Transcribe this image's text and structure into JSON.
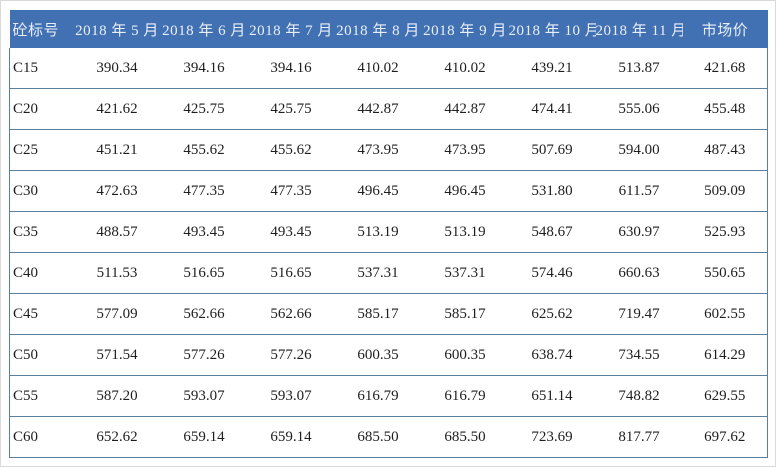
{
  "table": {
    "columns": [
      "砼标号",
      "2018 年 5 月",
      "2018 年 6 月",
      "2018 年 7 月",
      "2018 年 8 月",
      "2018 年 9 月",
      "2018 年 10 月",
      "2018 年 11 月",
      "市场价"
    ],
    "rows": [
      {
        "label": "C15",
        "values": [
          "390.34",
          "394.16",
          "394.16",
          "410.02",
          "410.02",
          "439.21",
          "513.87",
          "421.68"
        ]
      },
      {
        "label": "C20",
        "values": [
          "421.62",
          "425.75",
          "425.75",
          "442.87",
          "442.87",
          "474.41",
          "555.06",
          "455.48"
        ]
      },
      {
        "label": "C25",
        "values": [
          "451.21",
          "455.62",
          "455.62",
          "473.95",
          "473.95",
          "507.69",
          "594.00",
          "487.43"
        ]
      },
      {
        "label": "C30",
        "values": [
          "472.63",
          "477.35",
          "477.35",
          "496.45",
          "496.45",
          "531.80",
          "611.57",
          "509.09"
        ]
      },
      {
        "label": "C35",
        "values": [
          "488.57",
          "493.45",
          "493.45",
          "513.19",
          "513.19",
          "548.67",
          "630.97",
          "525.93"
        ]
      },
      {
        "label": "C40",
        "values": [
          "511.53",
          "516.65",
          "516.65",
          "537.31",
          "537.31",
          "574.46",
          "660.63",
          "550.65"
        ]
      },
      {
        "label": "C45",
        "values": [
          "577.09",
          "562.66",
          "562.66",
          "585.17",
          "585.17",
          "625.62",
          "719.47",
          "602.55"
        ]
      },
      {
        "label": "C50",
        "values": [
          "571.54",
          "577.26",
          "577.26",
          "600.35",
          "600.35",
          "638.74",
          "734.55",
          "614.29"
        ]
      },
      {
        "label": "C55",
        "values": [
          "587.20",
          "593.07",
          "593.07",
          "616.79",
          "616.79",
          "651.14",
          "748.82",
          "629.55"
        ]
      },
      {
        "label": "C60",
        "values": [
          "652.62",
          "659.14",
          "659.14",
          "685.50",
          "685.50",
          "723.69",
          "817.77",
          "697.62"
        ]
      }
    ]
  },
  "colors": {
    "header_bg": "#4271B3",
    "header_text": "#E9EFF9",
    "border": "#5B7E9B",
    "cell_text": "#1E1E1E"
  }
}
